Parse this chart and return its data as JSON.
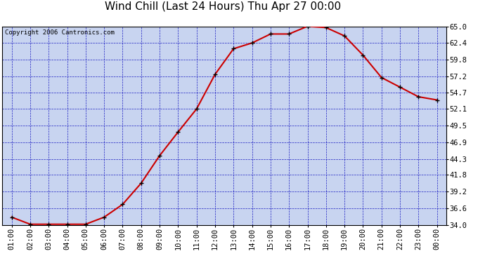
{
  "title": "Wind Chill (Last 24 Hours) Thu Apr 27 00:00",
  "copyright": "Copyright 2006 Cantronics.com",
  "x_labels": [
    "01:00",
    "02:00",
    "03:00",
    "04:00",
    "05:00",
    "06:00",
    "07:00",
    "08:00",
    "09:00",
    "10:00",
    "11:00",
    "12:00",
    "13:00",
    "14:00",
    "15:00",
    "16:00",
    "17:00",
    "18:00",
    "19:00",
    "20:00",
    "21:00",
    "22:00",
    "23:00",
    "00:00"
  ],
  "y_values": [
    35.2,
    34.1,
    34.1,
    34.1,
    34.1,
    35.2,
    37.2,
    40.5,
    44.8,
    48.5,
    52.1,
    57.5,
    61.5,
    62.4,
    63.8,
    63.8,
    65.0,
    64.8,
    63.5,
    60.5,
    57.0,
    55.5,
    54.0,
    53.5
  ],
  "line_color": "#cc0000",
  "marker_color": "#000000",
  "bg_color": "#c8d4f0",
  "grid_color": "#0000bb",
  "border_color": "#000000",
  "title_color": "#000000",
  "copyright_color": "#000000",
  "y_tick_values": [
    34.0,
    36.6,
    39.2,
    41.8,
    44.3,
    46.9,
    49.5,
    52.1,
    54.7,
    57.2,
    59.8,
    62.4,
    65.0
  ],
  "ylim_min": 34.0,
  "ylim_max": 65.0,
  "title_fontsize": 11,
  "tick_fontsize": 7.5,
  "copyright_fontsize": 6.5
}
